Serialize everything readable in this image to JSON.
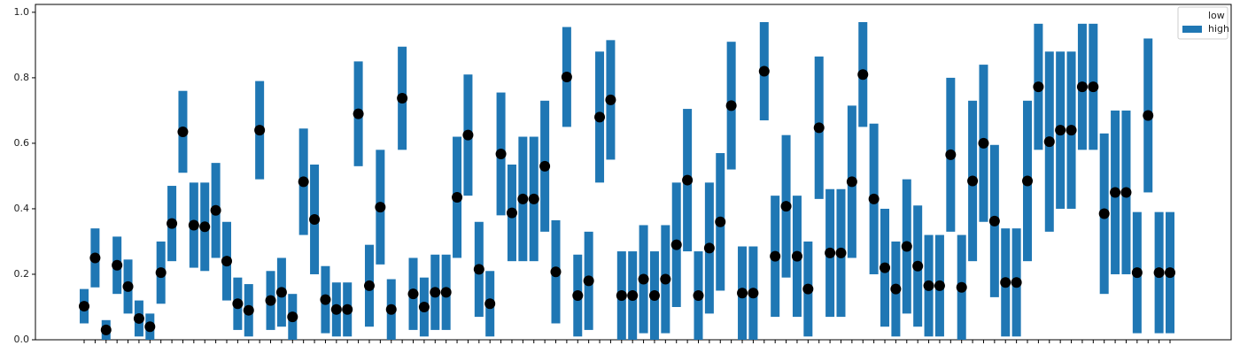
{
  "chart_data": {
    "type": "floating_bar",
    "categories": [
      null,
      null,
      null,
      null,
      null,
      null,
      null,
      null,
      null,
      null,
      null,
      null,
      null,
      null,
      null,
      null,
      null,
      null,
      null,
      null,
      null,
      null,
      null,
      null,
      null,
      null,
      null,
      null,
      null,
      null,
      null,
      null,
      null,
      null,
      null,
      null,
      null,
      null,
      null,
      null,
      null,
      null,
      null,
      null,
      null,
      null,
      null,
      null,
      null,
      null,
      null,
      null,
      null,
      null,
      null,
      null,
      null,
      null,
      null,
      null,
      null,
      null,
      null,
      null,
      null,
      null,
      null,
      null,
      null,
      null,
      null,
      null,
      null,
      null,
      null,
      null,
      null,
      null,
      null,
      null,
      null,
      null,
      null,
      null,
      null,
      null,
      null,
      null,
      null,
      null,
      null,
      null,
      null,
      null,
      null,
      null,
      null,
      null,
      null,
      null
    ],
    "series": [
      {
        "name": "low",
        "values": [
          0.05,
          0.16,
          0.0,
          0.14,
          0.08,
          0.01,
          0.0,
          0.11,
          0.24,
          0.51,
          0.22,
          0.21,
          0.25,
          0.12,
          0.03,
          0.01,
          0.49,
          0.03,
          0.04,
          0.0,
          0.32,
          0.2,
          0.02,
          0.01,
          0.01,
          0.53,
          0.04,
          0.23,
          0.0,
          0.58,
          0.03,
          0.01,
          0.03,
          0.03,
          0.25,
          0.44,
          0.07,
          0.01,
          0.38,
          0.24,
          0.24,
          0.24,
          0.33,
          0.05,
          0.65,
          0.01,
          0.03,
          0.48,
          0.55,
          0.0,
          0.0,
          0.02,
          0.0,
          0.02,
          0.1,
          0.27,
          0.0,
          0.08,
          0.15,
          0.52,
          0.0,
          0.0,
          0.67,
          0.07,
          0.19,
          0.07,
          0.01,
          0.43,
          0.07,
          0.07,
          0.25,
          0.65,
          0.2,
          0.04,
          0.01,
          0.08,
          0.04,
          0.01,
          0.01,
          0.33,
          0.0,
          0.24,
          0.36,
          0.13,
          0.01,
          0.01,
          0.24,
          0.58,
          0.33,
          0.4,
          0.4,
          0.58,
          0.58,
          0.14,
          0.2,
          0.2,
          0.02,
          0.45,
          0.02,
          0.02
        ]
      },
      {
        "name": "high",
        "color": "#1f77b4",
        "values": [
          0.155,
          0.34,
          0.06,
          0.315,
          0.245,
          0.12,
          0.08,
          0.3,
          0.47,
          0.76,
          0.48,
          0.48,
          0.54,
          0.36,
          0.19,
          0.17,
          0.79,
          0.21,
          0.25,
          0.14,
          0.645,
          0.535,
          0.225,
          0.175,
          0.175,
          0.85,
          0.29,
          0.58,
          0.185,
          0.895,
          0.25,
          0.19,
          0.26,
          0.26,
          0.62,
          0.81,
          0.36,
          0.21,
          0.755,
          0.535,
          0.62,
          0.62,
          0.73,
          0.365,
          0.955,
          0.26,
          0.33,
          0.88,
          0.915,
          0.27,
          0.27,
          0.35,
          0.27,
          0.35,
          0.48,
          0.705,
          0.27,
          0.48,
          0.57,
          0.91,
          0.285,
          0.285,
          0.97,
          0.44,
          0.625,
          0.44,
          0.3,
          0.865,
          0.46,
          0.46,
          0.715,
          0.97,
          0.66,
          0.4,
          0.3,
          0.49,
          0.41,
          0.32,
          0.32,
          0.8,
          0.32,
          0.73,
          0.84,
          0.595,
          0.34,
          0.34,
          0.73,
          0.965,
          0.88,
          0.88,
          0.88,
          0.965,
          0.965,
          0.63,
          0.7,
          0.7,
          0.39,
          0.92,
          0.39,
          0.39
        ]
      }
    ],
    "marker_color": "#000000",
    "ylim": [
      0,
      1.024
    ],
    "yticks": [
      {
        "value": 0,
        "label": "0.0"
      },
      0.2,
      0.4,
      0.6,
      0.8,
      {
        "value": 1,
        "label": "1.0"
      }
    ],
    "legend": "upper right"
  }
}
